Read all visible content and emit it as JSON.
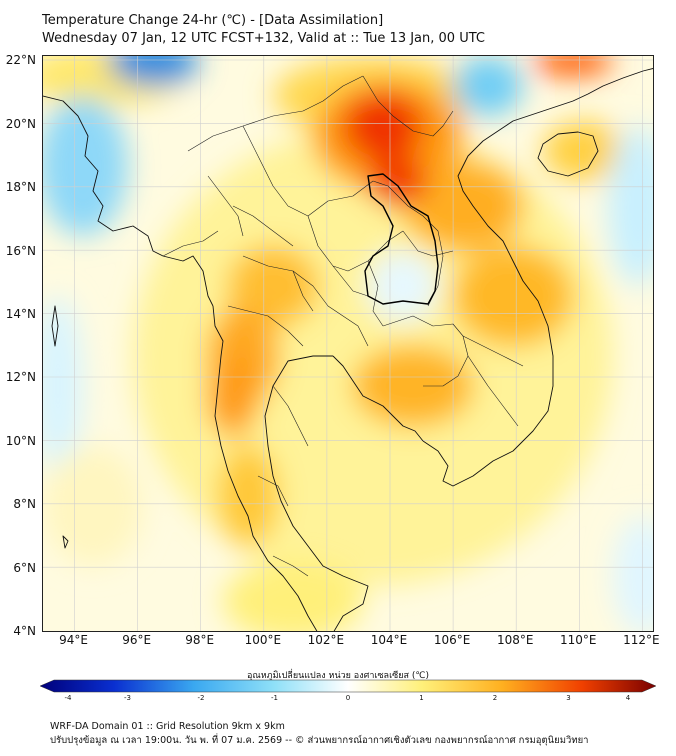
{
  "title": {
    "line1": "Temperature Change 24-hr (℃) - [Data Assimilation]",
    "line2": "Wednesday 07 Jan, 12 UTC FCST+132, Valid at :: Tue 13 Jan, 00 UTC"
  },
  "map": {
    "lat_labels": [
      "22°N",
      "20°N",
      "18°N",
      "16°N",
      "14°N",
      "12°N",
      "10°N",
      "8°N",
      "6°N",
      "4°N"
    ],
    "lon_labels": [
      "94°E",
      "96°E",
      "98°E",
      "100°E",
      "102°E",
      "104°E",
      "106°E",
      "108°E",
      "110°E",
      "112°E"
    ],
    "lat_range": [
      4,
      22.2
    ],
    "lon_range": [
      93,
      112.4
    ],
    "field_colors": {
      "warm_max": "#e41a00",
      "warm_mid": "#ff9a00",
      "warm_low": "#ffe24a",
      "neutral": "#fffbe0",
      "cool_low": "#c8f0ff",
      "cool_mid": "#4fc8f5",
      "cool_max": "#1e64d8"
    }
  },
  "colorbar": {
    "title": "อุณหภูมิเปลี่ยนแปลง หน่วย องศาเซลเซียส (℃)",
    "ticks": [
      "-4",
      "-3",
      "-2",
      "-1",
      "0",
      "1",
      "2",
      "3",
      "4"
    ],
    "min": -4,
    "max": 4
  },
  "footer": {
    "line1": "WRF-DA Domain 01 :: Grid Resolution 9km x 9km",
    "line2": "ปรับปรุงข้อมูล ณ เวลา 19:00น. วัน พ. ที่ 07 ม.ค. 2569 -- © ส่วนพยากรณ์อากาศเชิงตัวเลข กองพยากรณ์อากาศ กรมอุตุนิยมวิทยา"
  }
}
